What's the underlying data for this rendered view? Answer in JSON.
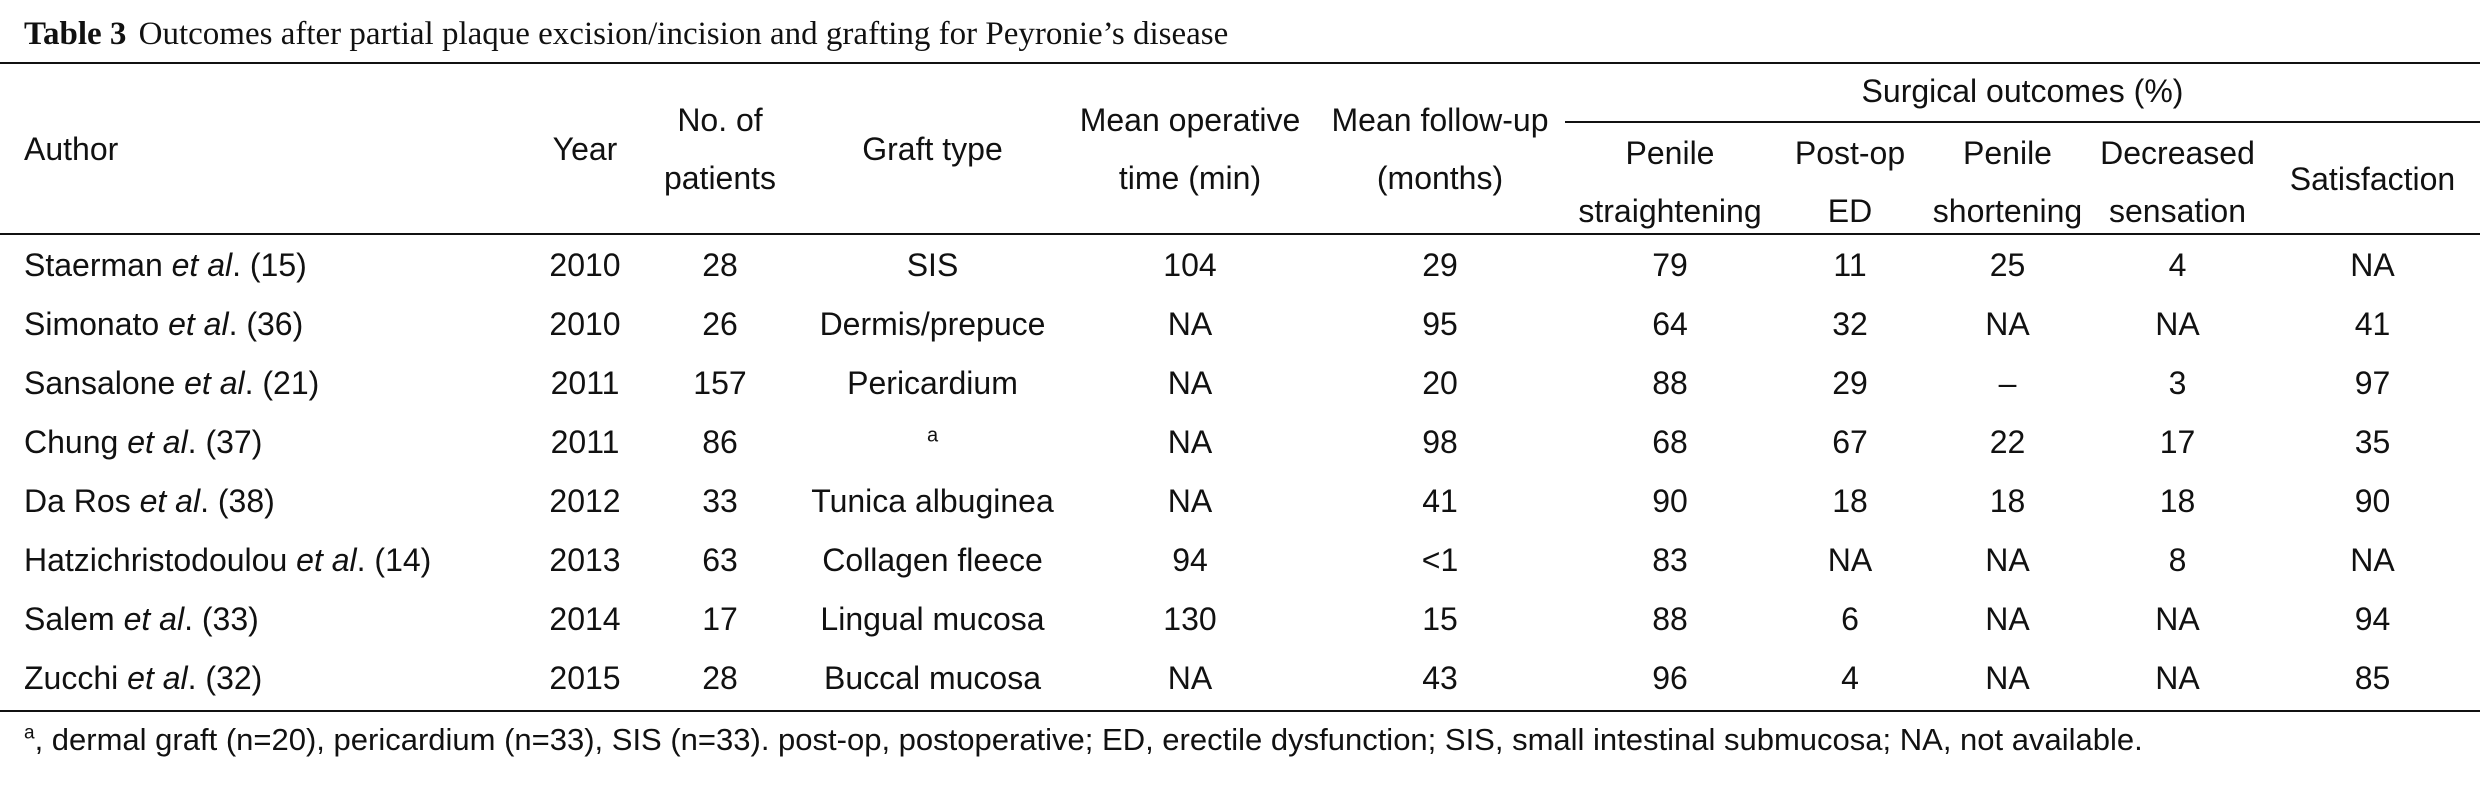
{
  "caption": {
    "label": "Table 3",
    "text": "Outcomes after partial plaque excision/incision and grafting for Peyronie’s disease"
  },
  "header": {
    "author": "Author",
    "year": "Year",
    "patients": [
      "No. of",
      "patients"
    ],
    "graft": "Graft type",
    "optime": [
      "Mean operative",
      "time (min)"
    ],
    "followup": [
      "Mean follow-up",
      "(months)"
    ],
    "surgical": "Surgical outcomes (%)",
    "straight": [
      "Penile",
      "straightening"
    ],
    "posted": [
      "Post-op",
      "ED"
    ],
    "shortening": [
      "Penile",
      "shortening"
    ],
    "sensation": [
      "Decreased",
      "sensation"
    ],
    "satisfaction": "Satisfaction"
  },
  "rows": [
    {
      "author_pre": "Staerman ",
      "author_it": "et al",
      "author_post": ". (15)",
      "year": "2010",
      "patients": "28",
      "graft": "SIS",
      "graft_sup": "",
      "optime": "104",
      "followup": "29",
      "straight": "79",
      "posted": "11",
      "shortening": "25",
      "sensation": "4",
      "satisfaction": "NA"
    },
    {
      "author_pre": "Simonato ",
      "author_it": "et al",
      "author_post": ". (36)",
      "year": "2010",
      "patients": "26",
      "graft": "Dermis/prepuce",
      "graft_sup": "",
      "optime": "NA",
      "followup": "95",
      "straight": "64",
      "posted": "32",
      "shortening": "NA",
      "sensation": "NA",
      "satisfaction": "41"
    },
    {
      "author_pre": "Sansalone ",
      "author_it": "et al",
      "author_post": ". (21)",
      "year": "2011",
      "patients": "157",
      "graft": "Pericardium",
      "graft_sup": "",
      "optime": "NA",
      "followup": "20",
      "straight": "88",
      "posted": "29",
      "shortening": "–",
      "sensation": "3",
      "satisfaction": "97"
    },
    {
      "author_pre": "Chung ",
      "author_it": "et al",
      "author_post": ". (37)",
      "year": "2011",
      "patients": "86",
      "graft": "",
      "graft_sup": "a",
      "optime": "NA",
      "followup": "98",
      "straight": "68",
      "posted": "67",
      "shortening": "22",
      "sensation": "17",
      "satisfaction": "35"
    },
    {
      "author_pre": "Da Ros ",
      "author_it": "et al",
      "author_post": ". (38)",
      "year": "2012",
      "patients": "33",
      "graft": "Tunica albuginea",
      "graft_sup": "",
      "optime": "NA",
      "followup": "41",
      "straight": "90",
      "posted": "18",
      "shortening": "18",
      "sensation": "18",
      "satisfaction": "90"
    },
    {
      "author_pre": "Hatzichristodoulou ",
      "author_it": "et al",
      "author_post": ". (14)",
      "year": "2013",
      "patients": "63",
      "graft": "Collagen fleece",
      "graft_sup": "",
      "optime": "94",
      "followup": "<1",
      "straight": "83",
      "posted": "NA",
      "shortening": "NA",
      "sensation": "8",
      "satisfaction": "NA"
    },
    {
      "author_pre": "Salem ",
      "author_it": "et al",
      "author_post": ". (33)",
      "year": "2014",
      "patients": "17",
      "graft": "Lingual mucosa",
      "graft_sup": "",
      "optime": "130",
      "followup": "15",
      "straight": "88",
      "posted": "6",
      "shortening": "NA",
      "sensation": "NA",
      "satisfaction": "94"
    },
    {
      "author_pre": "Zucchi ",
      "author_it": "et al",
      "author_post": ". (32)",
      "year": "2015",
      "patients": "28",
      "graft": "Buccal mucosa",
      "graft_sup": "",
      "optime": "NA",
      "followup": "43",
      "straight": "96",
      "posted": "4",
      "shortening": "NA",
      "sensation": "NA",
      "satisfaction": "85"
    }
  ],
  "footnote": {
    "sup": "a",
    "text": ", dermal graft (n=20), pericardium (n=33), SIS (n=33). post-op, postoperative; ED, erectile dysfunction; SIS, small intestinal submucosa; NA, not available."
  }
}
